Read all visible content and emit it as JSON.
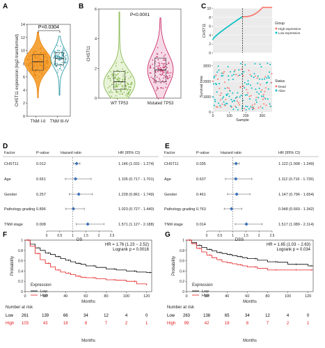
{
  "panels": [
    "A",
    "B",
    "C",
    "D",
    "E",
    "F",
    "G"
  ],
  "chart_data": [
    {
      "panel": "A",
      "type": "violin",
      "categories": [
        "TNM I-II",
        "TNM III-IV"
      ],
      "ylabel": "CHST11 expression (log2-transformed)",
      "ylim": [
        0,
        14
      ],
      "yticks": [
        0,
        2,
        4,
        6,
        8,
        10,
        12,
        14
      ],
      "pvalue": "P=0.0304",
      "colors": [
        "#e8820c",
        "#1a8fa0"
      ],
      "medians": [
        8.3,
        8.8
      ]
    },
    {
      "panel": "B",
      "type": "violin",
      "categories": [
        "WT TP53",
        "Mutated TP53"
      ],
      "ylabel": "CHST11",
      "ylim": [
        0,
        6
      ],
      "yticks": [
        0,
        2,
        4,
        6
      ],
      "pvalue": "P<0.0001",
      "colors": [
        "#7cb342",
        "#c2185b"
      ],
      "medians": [
        1.1,
        1.9
      ]
    },
    {
      "panel": "C",
      "type": "scatter",
      "top": {
        "ylabel": "CHST11",
        "ylim": [
          0,
          10
        ],
        "yticks": [
          0,
          2,
          4,
          6,
          8,
          10
        ],
        "legend_title": "Group",
        "legend": [
          "High expression",
          "Low expression"
        ],
        "colors": [
          "#f8766d",
          "#00bfc4"
        ]
      },
      "bottom": {
        "ylabel": "Survival time",
        "xlabel": "Sample",
        "ylim": [
          0,
          3300
        ],
        "yticks": [
          0,
          1000,
          2000,
          3000
        ],
        "xticks": [
          0,
          100,
          200,
          300
        ],
        "legend_title": "Status",
        "legend": [
          "Dead",
          "Alive"
        ],
        "colors": [
          "#f8766d",
          "#00bfc4"
        ]
      },
      "cutoff_sample": 180,
      "n_samples": 360
    },
    {
      "panel": "D",
      "type": "forest",
      "xlabel": "OS",
      "headers": [
        "Factor",
        "P-value",
        "Hazard ratio",
        "HR (95% CI)"
      ],
      "xticks": [
        0,
        0.5,
        1,
        1.5,
        2,
        2.5
      ],
      "xlim": [
        0,
        2.5
      ],
      "rows": [
        {
          "factor": "CHST11",
          "p": "0.012",
          "hr": 1.146,
          "lo": 1.031,
          "hi": 1.274,
          "ci": "1.146 (1.031 - 1.274)"
        },
        {
          "factor": "Age",
          "p": "0.651",
          "hr": 1.105,
          "lo": 0.717,
          "hi": 1.701,
          "ci": "1.105 (0.717 - 1.701)"
        },
        {
          "factor": "Gender",
          "p": "0.257",
          "hr": 1.228,
          "lo": 0.861,
          "hi": 1.749,
          "ci": "1.228 (0.861 - 1.749)"
        },
        {
          "factor": "Pathology grading",
          "p": "0.896",
          "hr": 1.023,
          "lo": 0.727,
          "hi": 1.44,
          "ci": "1.023 (0.727 - 1.440)"
        },
        {
          "factor": "TNM stage",
          "p": "0.008",
          "hr": 1.571,
          "lo": 1.127,
          "hi": 2.188,
          "ci": "1.571 (1.127 - 2.188)"
        }
      ]
    },
    {
      "panel": "E",
      "type": "forest",
      "xlabel": "DSS",
      "headers": [
        "Factor",
        "P-value",
        "Hazard ratio",
        "HR (95% CI)"
      ],
      "xticks": [
        0,
        0.5,
        1,
        1.5,
        2,
        2.5
      ],
      "xlim": [
        0,
        2.5
      ],
      "rows": [
        {
          "factor": "CHST11",
          "p": "0.035",
          "hr": 1.122,
          "lo": 1.008,
          "hi": 1.249,
          "ci": "1.122 (1.008 - 1.249)"
        },
        {
          "factor": "Age",
          "p": "0.637",
          "hr": 1.112,
          "lo": 0.716,
          "hi": 1.726,
          "ci": "1.112 (0.716 - 1.726)"
        },
        {
          "factor": "Gender",
          "p": "0.461",
          "hr": 1.147,
          "lo": 0.796,
          "hi": 1.654,
          "ci": "1.147 (0.796 - 1.654)"
        },
        {
          "factor": "Pathology grading",
          "p": "0.763",
          "hr": 0.948,
          "lo": 0.669,
          "hi": 1.342,
          "ci": "0.948 (0.669 - 1.342)"
        },
        {
          "factor": "TNM stage",
          "p": "0.014",
          "hr": 1.517,
          "lo": 1.089,
          "hi": 2.114,
          "ci": "1.517 (1.089 - 2.114)"
        }
      ]
    },
    {
      "panel": "F",
      "type": "line",
      "ylabel": "Probability",
      "xlabel": "Months",
      "xlim": [
        0,
        125
      ],
      "ylim": [
        0,
        1
      ],
      "xticks": [
        0,
        20,
        40,
        60,
        80,
        100,
        120
      ],
      "yticks": [
        0,
        0.2,
        0.4,
        0.6,
        0.8,
        1
      ],
      "stats": [
        "HR = 1.76 (1.23 − 2.52)",
        "Logrank p = 0.0016"
      ],
      "legend_title": "Expression",
      "series": [
        {
          "name": "Low",
          "color": "#000000",
          "x": [
            0,
            5,
            10,
            15,
            20,
            25,
            30,
            35,
            40,
            45,
            50,
            55,
            60,
            70,
            80,
            90,
            100,
            110,
            120,
            125
          ],
          "y": [
            1,
            0.92,
            0.85,
            0.8,
            0.75,
            0.72,
            0.68,
            0.64,
            0.61,
            0.58,
            0.55,
            0.53,
            0.5,
            0.47,
            0.44,
            0.42,
            0.4,
            0.38,
            0.37,
            0.37
          ]
        },
        {
          "name": "High",
          "color": "#e31a1c",
          "x": [
            0,
            5,
            10,
            15,
            20,
            25,
            30,
            35,
            40,
            45,
            50,
            55,
            60,
            70,
            80,
            90,
            100,
            110,
            120
          ],
          "y": [
            1,
            0.88,
            0.74,
            0.62,
            0.55,
            0.48,
            0.42,
            0.38,
            0.36,
            0.33,
            0.3,
            0.28,
            0.27,
            0.25,
            0.23,
            0.22,
            0.2,
            0.15,
            0.12
          ]
        }
      ],
      "risk_table": {
        "title": "Number at risk",
        "times": [
          "0",
          "20",
          "40",
          "60",
          "80",
          "100",
          "120"
        ],
        "rows": [
          {
            "name": "Low",
            "values": [
              "261",
              "139",
              "66",
              "34",
              "12",
              "4",
              "0"
            ]
          },
          {
            "name": "High",
            "values": [
              "103",
              "43",
              "18",
              "8",
              "7",
              "2",
              "1"
            ]
          }
        ]
      }
    },
    {
      "panel": "G",
      "type": "line",
      "ylabel": "Probability",
      "xlabel": "Months",
      "xlim": [
        0,
        125
      ],
      "ylim": [
        0,
        1
      ],
      "xticks": [
        0,
        20,
        40,
        60,
        80,
        100,
        120
      ],
      "yticks": [
        0,
        0.2,
        0.4,
        0.6,
        0.8,
        1
      ],
      "stats": [
        "HR = 1.65 (1.03 − 2.63)",
        "Logrank p = 0.034"
      ],
      "legend_title": "Expression",
      "series": [
        {
          "name": "Low",
          "color": "#000000",
          "x": [
            0,
            5,
            10,
            15,
            20,
            25,
            30,
            35,
            40,
            45,
            50,
            55,
            60,
            70,
            80,
            90,
            100,
            110,
            120,
            125
          ],
          "y": [
            1,
            0.95,
            0.9,
            0.86,
            0.82,
            0.79,
            0.76,
            0.74,
            0.72,
            0.7,
            0.68,
            0.66,
            0.64,
            0.61,
            0.58,
            0.57,
            0.53,
            0.53,
            0.5,
            0.5
          ]
        },
        {
          "name": "High",
          "color": "#e31a1c",
          "x": [
            0,
            5,
            10,
            15,
            20,
            25,
            30,
            35,
            40,
            45,
            50,
            55,
            60,
            70,
            80,
            90,
            100,
            110,
            120,
            125
          ],
          "y": [
            1,
            0.93,
            0.84,
            0.77,
            0.71,
            0.66,
            0.62,
            0.58,
            0.56,
            0.54,
            0.52,
            0.5,
            0.48,
            0.45,
            0.42,
            0.42,
            0.42,
            0.42,
            0.42,
            0.42
          ]
        }
      ],
      "risk_table": {
        "title": "Number at risk",
        "times": [
          "0",
          "20",
          "40",
          "60",
          "80",
          "100",
          "120"
        ],
        "rows": [
          {
            "name": "Low",
            "values": [
              "263",
              "138",
              "65",
              "34",
              "12",
              "4",
              "0"
            ]
          },
          {
            "name": "High",
            "values": [
              "99",
              "42",
              "18",
              "8",
              "7",
              "2",
              "1"
            ]
          }
        ]
      }
    }
  ]
}
